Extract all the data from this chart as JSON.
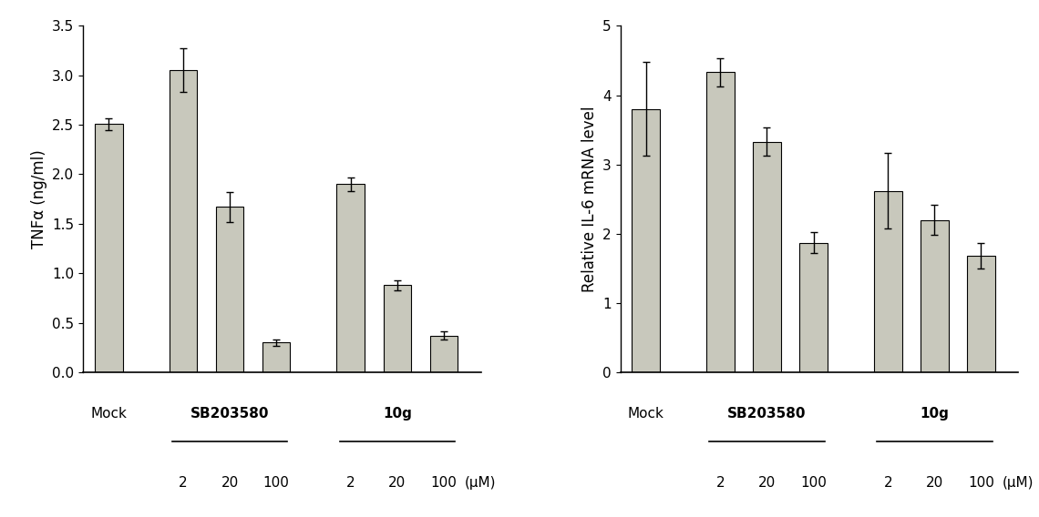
{
  "left_panel": {
    "ylabel": "TNFα (ng/ml)",
    "ylim": [
      0,
      3.5
    ],
    "yticks": [
      0.0,
      0.5,
      1.0,
      1.5,
      2.0,
      2.5,
      3.0,
      3.5
    ],
    "values": [
      2.51,
      3.05,
      1.67,
      0.3,
      1.9,
      0.88,
      0.37
    ],
    "errors": [
      0.06,
      0.22,
      0.15,
      0.03,
      0.07,
      0.05,
      0.04
    ],
    "bar_color": "#c8c8bc",
    "group_labels": [
      "Mock",
      "SB203580",
      "10g"
    ],
    "dose_labels": [
      "2",
      "20",
      "100",
      "2",
      "20",
      "100"
    ],
    "uM_label": "(μM)"
  },
  "right_panel": {
    "ylabel": "Relative IL-6 mRNA level",
    "ylim": [
      0,
      5
    ],
    "yticks": [
      0,
      1,
      2,
      3,
      4,
      5
    ],
    "values": [
      3.8,
      4.33,
      3.33,
      1.87,
      2.62,
      2.2,
      1.68
    ],
    "errors": [
      0.68,
      0.2,
      0.2,
      0.15,
      0.55,
      0.22,
      0.18
    ],
    "bar_color": "#c8c8bc",
    "group_labels": [
      "Mock",
      "SB203580",
      "10g"
    ],
    "dose_labels": [
      "2",
      "20",
      "100",
      "2",
      "20",
      "100"
    ],
    "uM_label": "(μM)"
  },
  "positions": [
    0,
    1.6,
    2.6,
    3.6,
    5.2,
    6.2,
    7.2
  ],
  "bar_width": 0.6,
  "xlim": [
    -0.55,
    8.0
  ],
  "background_color": "#ffffff",
  "font_size": 11,
  "tick_font_size": 11,
  "label_font_size": 12
}
